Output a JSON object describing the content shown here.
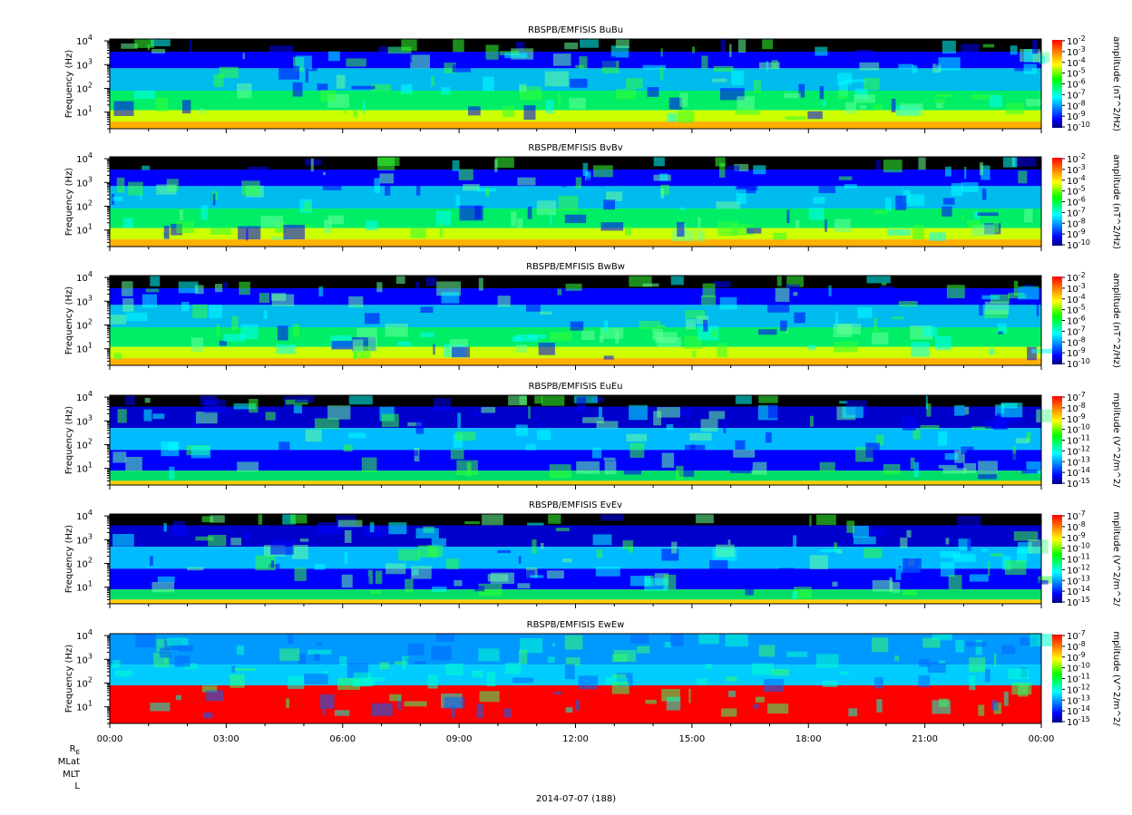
{
  "figure": {
    "footer_label": "2014-07-07 (188)",
    "orbit_labels": [
      "R",
      "MLat",
      "MLT",
      "L"
    ],
    "orbit_label_sub": "E"
  },
  "time_axis": {
    "start": "2014-07-07T00:00",
    "end": "2014-07-08T00:00",
    "tick_labels": [
      "00:00",
      "03:00",
      "06:00",
      "09:00",
      "12:00",
      "15:00",
      "18:00",
      "21:00",
      "00:00"
    ]
  },
  "colors": {
    "colormap": [
      "#000080",
      "#0000ff",
      "#00ffff",
      "#00ff00",
      "#ffff00",
      "#ff8000",
      "#ff0000"
    ],
    "masked": "#000000"
  },
  "chart_data": [
    {
      "type": "heatmap",
      "title": "RBSPB/EMFISIS  BuBu",
      "ylabel": "Frequency (Hz)",
      "y_scale": "log",
      "ylim": [
        2,
        12000
      ],
      "y_ticks": [
        {
          "base": "10",
          "exp": "1"
        },
        {
          "base": "10",
          "exp": "2"
        },
        {
          "base": "10",
          "exp": "3"
        },
        {
          "base": "10",
          "exp": "4"
        }
      ],
      "colorbar_label": "amplitude (nT^2/Hz)",
      "colorbar_ticks": [
        {
          "base": "10",
          "exp": "-2"
        },
        {
          "base": "10",
          "exp": "-3"
        },
        {
          "base": "10",
          "exp": "-4"
        },
        {
          "base": "10",
          "exp": "-5"
        },
        {
          "base": "10",
          "exp": "-6"
        },
        {
          "base": "10",
          "exp": "-7"
        },
        {
          "base": "10",
          "exp": "-8"
        },
        {
          "base": "10",
          "exp": "-9"
        },
        {
          "base": "10",
          "exp": "-10"
        }
      ]
    },
    {
      "type": "heatmap",
      "title": "RBSPB/EMFISIS  BvBv",
      "ylabel": "Frequency (Hz)",
      "y_scale": "log",
      "ylim": [
        2,
        12000
      ],
      "y_ticks": [
        {
          "base": "10",
          "exp": "1"
        },
        {
          "base": "10",
          "exp": "2"
        },
        {
          "base": "10",
          "exp": "3"
        },
        {
          "base": "10",
          "exp": "4"
        }
      ],
      "colorbar_label": "amplitude (nT^2/Hz)",
      "colorbar_ticks": [
        {
          "base": "10",
          "exp": "-2"
        },
        {
          "base": "10",
          "exp": "-3"
        },
        {
          "base": "10",
          "exp": "-4"
        },
        {
          "base": "10",
          "exp": "-5"
        },
        {
          "base": "10",
          "exp": "-6"
        },
        {
          "base": "10",
          "exp": "-7"
        },
        {
          "base": "10",
          "exp": "-8"
        },
        {
          "base": "10",
          "exp": "-9"
        },
        {
          "base": "10",
          "exp": "-10"
        }
      ]
    },
    {
      "type": "heatmap",
      "title": "RBSPB/EMFISIS  BwBw",
      "ylabel": "Frequency (Hz)",
      "y_scale": "log",
      "ylim": [
        2,
        12000
      ],
      "y_ticks": [
        {
          "base": "10",
          "exp": "1"
        },
        {
          "base": "10",
          "exp": "2"
        },
        {
          "base": "10",
          "exp": "3"
        },
        {
          "base": "10",
          "exp": "4"
        }
      ],
      "colorbar_label": "amplitude (nT^2/Hz)",
      "colorbar_ticks": [
        {
          "base": "10",
          "exp": "-2"
        },
        {
          "base": "10",
          "exp": "-3"
        },
        {
          "base": "10",
          "exp": "-4"
        },
        {
          "base": "10",
          "exp": "-5"
        },
        {
          "base": "10",
          "exp": "-6"
        },
        {
          "base": "10",
          "exp": "-7"
        },
        {
          "base": "10",
          "exp": "-8"
        },
        {
          "base": "10",
          "exp": "-9"
        },
        {
          "base": "10",
          "exp": "-10"
        }
      ]
    },
    {
      "type": "heatmap",
      "title": "RBSPB/EMFISIS  EuEu",
      "ylabel": "Frequency (Hz)",
      "y_scale": "log",
      "ylim": [
        2,
        12000
      ],
      "y_ticks": [
        {
          "base": "10",
          "exp": "1"
        },
        {
          "base": "10",
          "exp": "2"
        },
        {
          "base": "10",
          "exp": "3"
        },
        {
          "base": "10",
          "exp": "4"
        }
      ],
      "colorbar_label": "mplitude (V^2/m^2/",
      "colorbar_ticks": [
        {
          "base": "10",
          "exp": "-7"
        },
        {
          "base": "10",
          "exp": "-8"
        },
        {
          "base": "10",
          "exp": "-9"
        },
        {
          "base": "10",
          "exp": "-10"
        },
        {
          "base": "10",
          "exp": "-11"
        },
        {
          "base": "10",
          "exp": "-12"
        },
        {
          "base": "10",
          "exp": "-13"
        },
        {
          "base": "10",
          "exp": "-14"
        },
        {
          "base": "10",
          "exp": "-15"
        }
      ]
    },
    {
      "type": "heatmap",
      "title": "RBSPB/EMFISIS  EvEv",
      "ylabel": "Frequency (Hz)",
      "y_scale": "log",
      "ylim": [
        2,
        12000
      ],
      "y_ticks": [
        {
          "base": "10",
          "exp": "1"
        },
        {
          "base": "10",
          "exp": "2"
        },
        {
          "base": "10",
          "exp": "3"
        },
        {
          "base": "10",
          "exp": "4"
        }
      ],
      "colorbar_label": "mplitude (V^2/m^2/",
      "colorbar_ticks": [
        {
          "base": "10",
          "exp": "-7"
        },
        {
          "base": "10",
          "exp": "-8"
        },
        {
          "base": "10",
          "exp": "-9"
        },
        {
          "base": "10",
          "exp": "-10"
        },
        {
          "base": "10",
          "exp": "-11"
        },
        {
          "base": "10",
          "exp": "-12"
        },
        {
          "base": "10",
          "exp": "-13"
        },
        {
          "base": "10",
          "exp": "-14"
        },
        {
          "base": "10",
          "exp": "-15"
        }
      ]
    },
    {
      "type": "heatmap",
      "title": "RBSPB/EMFISIS  EwEw",
      "ylabel": "Frequency (Hz)",
      "y_scale": "log",
      "ylim": [
        2,
        12000
      ],
      "y_ticks": [
        {
          "base": "10",
          "exp": "1"
        },
        {
          "base": "10",
          "exp": "2"
        },
        {
          "base": "10",
          "exp": "3"
        },
        {
          "base": "10",
          "exp": "4"
        }
      ],
      "colorbar_label": "mplitude (V^2/m^2/",
      "colorbar_ticks": [
        {
          "base": "10",
          "exp": "-7"
        },
        {
          "base": "10",
          "exp": "-8"
        },
        {
          "base": "10",
          "exp": "-9"
        },
        {
          "base": "10",
          "exp": "-10"
        },
        {
          "base": "10",
          "exp": "-11"
        },
        {
          "base": "10",
          "exp": "-12"
        },
        {
          "base": "10",
          "exp": "-13"
        },
        {
          "base": "10",
          "exp": "-14"
        },
        {
          "base": "10",
          "exp": "-15"
        }
      ]
    }
  ]
}
